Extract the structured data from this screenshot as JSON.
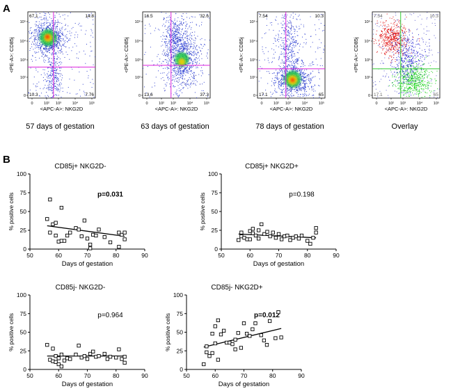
{
  "panel_a": {
    "label": "A",
    "y_axis_label": "<PE-A>: CD85j",
    "x_axis_label": "<APC-A>: NKG2D",
    "x_ticks": [
      "0",
      "10²",
      "10³",
      "10⁴",
      "10⁵"
    ],
    "y_ticks": [
      "0",
      "10²",
      "10³",
      "10⁴",
      "10⁵"
    ],
    "plots": [
      {
        "caption": "57 days of gestation",
        "gate_color": "#dd22dd",
        "quadrants": {
          "ul": "67.1",
          "ur": "14.8",
          "ll": "10.3",
          "lr": "7.76"
        }
      },
      {
        "caption": "63 days of gestation",
        "gate_color": "#dd22dd",
        "quadrants": {
          "ul": "16.5",
          "ur": "32.6",
          "ll": "13.6",
          "lr": "37.3"
        }
      },
      {
        "caption": "78 days of gestation",
        "gate_color": "#dd22dd",
        "quadrants": {
          "ul": "7.54",
          "ur": "10.3",
          "ll": "17.1",
          "lr": "65"
        }
      },
      {
        "caption": "Overlay",
        "gate_color": "#33cc33",
        "quadrants": {
          "ul": "7.54",
          "ur": "10.3",
          "ll": "17.1",
          "lr": "65"
        }
      }
    ]
  },
  "panel_b": {
    "label": "B",
    "chart_data": [
      {
        "type": "scatter",
        "title": "CD85j+ NKG2D-",
        "xlabel": "Days of gestation",
        "ylabel": "% positive cells",
        "xlim": [
          50,
          90
        ],
        "ylim": [
          0,
          100
        ],
        "xticks": [
          50,
          60,
          70,
          80,
          90
        ],
        "yticks": [
          0,
          25,
          50,
          75,
          100
        ],
        "pvalue": "p=0.031",
        "significant": true,
        "fit": {
          "x": [
            56,
            83
          ],
          "y": [
            31,
            17
          ]
        },
        "points": [
          [
            56,
            40
          ],
          [
            57,
            66
          ],
          [
            57,
            22
          ],
          [
            58,
            33
          ],
          [
            59,
            35
          ],
          [
            59,
            18
          ],
          [
            60,
            10
          ],
          [
            61,
            55
          ],
          [
            61,
            11
          ],
          [
            62,
            11
          ],
          [
            63,
            18
          ],
          [
            64,
            22
          ],
          [
            66,
            28
          ],
          [
            67,
            26
          ],
          [
            68,
            17
          ],
          [
            69,
            38
          ],
          [
            70,
            14
          ],
          [
            71,
            6
          ],
          [
            71,
            1
          ],
          [
            72,
            19
          ],
          [
            73,
            18
          ],
          [
            74,
            26
          ],
          [
            76,
            16
          ],
          [
            78,
            9
          ],
          [
            81,
            22
          ],
          [
            81,
            3
          ],
          [
            82,
            19
          ],
          [
            83,
            22
          ],
          [
            83,
            13
          ]
        ]
      },
      {
        "type": "scatter",
        "title": "CD85j+ NKG2D+",
        "xlabel": "Days of gestation",
        "ylabel": "% positive cells",
        "xlim": [
          50,
          90
        ],
        "ylim": [
          0,
          100
        ],
        "xticks": [
          50,
          60,
          70,
          80,
          90
        ],
        "yticks": [
          0,
          25,
          50,
          75,
          100
        ],
        "pvalue": "p=0.198",
        "significant": false,
        "fit": {
          "x": [
            56,
            83
          ],
          "y": [
            20,
            15
          ]
        },
        "points": [
          [
            56,
            12
          ],
          [
            57,
            22
          ],
          [
            57,
            17
          ],
          [
            58,
            15
          ],
          [
            59,
            13
          ],
          [
            60,
            24
          ],
          [
            60,
            13
          ],
          [
            61,
            21
          ],
          [
            61,
            27
          ],
          [
            62,
            18
          ],
          [
            63,
            25
          ],
          [
            63,
            14
          ],
          [
            64,
            33
          ],
          [
            65,
            20
          ],
          [
            66,
            23
          ],
          [
            67,
            17
          ],
          [
            68,
            22
          ],
          [
            69,
            15
          ],
          [
            70,
            20
          ],
          [
            71,
            13
          ],
          [
            72,
            17
          ],
          [
            73,
            18
          ],
          [
            74,
            12
          ],
          [
            75,
            15
          ],
          [
            76,
            17
          ],
          [
            77,
            14
          ],
          [
            78,
            18
          ],
          [
            80,
            11
          ],
          [
            81,
            7
          ],
          [
            82,
            15
          ],
          [
            83,
            28
          ],
          [
            83,
            22
          ]
        ]
      },
      {
        "type": "scatter",
        "title": "CD85j- NKG2D-",
        "xlabel": "Days of gestation",
        "ylabel": "% positive cells",
        "xlim": [
          50,
          90
        ],
        "ylim": [
          0,
          100
        ],
        "xticks": [
          50,
          60,
          70,
          80,
          90
        ],
        "yticks": [
          0,
          25,
          50,
          75,
          100
        ],
        "pvalue": "p=0.964",
        "significant": false,
        "fit": {
          "x": [
            56,
            83
          ],
          "y": [
            18,
            18
          ]
        },
        "points": [
          [
            56,
            33
          ],
          [
            57,
            13
          ],
          [
            58,
            11
          ],
          [
            58,
            28
          ],
          [
            59,
            18
          ],
          [
            59,
            10
          ],
          [
            60,
            15
          ],
          [
            60,
            7
          ],
          [
            61,
            20
          ],
          [
            61,
            4
          ],
          [
            62,
            12
          ],
          [
            63,
            15
          ],
          [
            64,
            14
          ],
          [
            66,
            20
          ],
          [
            67,
            32
          ],
          [
            68,
            16
          ],
          [
            69,
            18
          ],
          [
            70,
            14
          ],
          [
            71,
            21
          ],
          [
            72,
            24
          ],
          [
            73,
            17
          ],
          [
            74,
            18
          ],
          [
            76,
            21
          ],
          [
            77,
            14
          ],
          [
            78,
            17
          ],
          [
            80,
            16
          ],
          [
            81,
            27
          ],
          [
            82,
            14
          ],
          [
            83,
            9
          ],
          [
            83,
            17
          ]
        ]
      },
      {
        "type": "scatter",
        "title": "CD85j- NKG2D+",
        "xlabel": "Days of gestation",
        "ylabel": "% positive cells",
        "xlim": [
          50,
          90
        ],
        "ylim": [
          0,
          100
        ],
        "xticks": [
          50,
          60,
          70,
          80,
          90
        ],
        "yticks": [
          0,
          25,
          50,
          75,
          100
        ],
        "pvalue": "p=0.012",
        "significant": true,
        "fit": {
          "x": [
            56,
            83
          ],
          "y": [
            30,
            55
          ]
        },
        "points": [
          [
            56,
            7
          ],
          [
            57,
            31
          ],
          [
            57,
            23
          ],
          [
            58,
            18
          ],
          [
            59,
            22
          ],
          [
            59,
            48
          ],
          [
            60,
            35
          ],
          [
            60,
            58
          ],
          [
            61,
            66
          ],
          [
            61,
            13
          ],
          [
            62,
            47
          ],
          [
            63,
            52
          ],
          [
            64,
            36
          ],
          [
            65,
            36
          ],
          [
            66,
            34
          ],
          [
            67,
            40
          ],
          [
            67,
            27
          ],
          [
            68,
            49
          ],
          [
            69,
            29
          ],
          [
            70,
            62
          ],
          [
            71,
            48
          ],
          [
            72,
            45
          ],
          [
            73,
            54
          ],
          [
            74,
            62
          ],
          [
            76,
            46
          ],
          [
            77,
            39
          ],
          [
            78,
            33
          ],
          [
            79,
            65
          ],
          [
            81,
            42
          ],
          [
            82,
            77
          ],
          [
            83,
            43
          ]
        ]
      }
    ]
  }
}
